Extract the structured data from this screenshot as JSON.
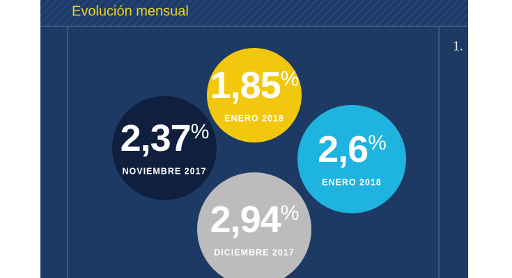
{
  "header": {
    "title": "Evolución mensual"
  },
  "side_marker": "1.",
  "items": [
    {
      "value": "1,85",
      "unit": "%",
      "label": "ENERO 2018"
    },
    {
      "value": "2,37",
      "unit": "%",
      "label": "NOVIEMBRE 2017"
    },
    {
      "value": "2,6",
      "unit": "%",
      "label": "ENERO 2018"
    },
    {
      "value": "2,94",
      "unit": "%",
      "label": "DICIEMBRE 2017"
    }
  ]
}
